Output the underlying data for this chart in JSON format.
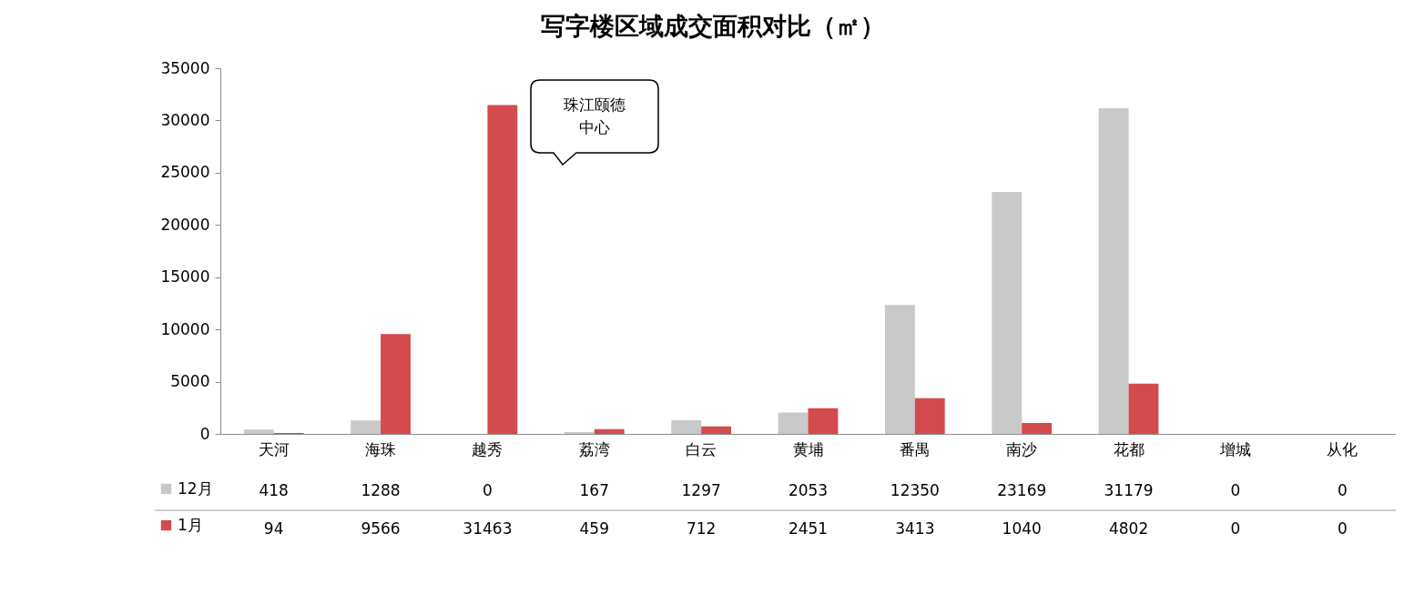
{
  "chart_data": {
    "type": "bar",
    "title": "写字楼区域成交面积对比（㎡）",
    "categories": [
      "天河",
      "海珠",
      "越秀",
      "荔湾",
      "白云",
      "黄埔",
      "番禺",
      "南沙",
      "花都",
      "增城",
      "从化"
    ],
    "series": [
      {
        "name": "12月",
        "color": "#c9c9c9",
        "values": [
          418,
          1288,
          0,
          167,
          1297,
          2053,
          12350,
          23169,
          31179,
          0,
          0
        ]
      },
      {
        "name": "1月",
        "color": "#d34b4c",
        "values": [
          94,
          9566,
          31463,
          459,
          712,
          2451,
          3413,
          1040,
          4802,
          0,
          0
        ]
      }
    ],
    "ylim": [
      0,
      35000
    ],
    "yticks": [
      0,
      5000,
      10000,
      15000,
      20000,
      25000,
      30000,
      35000
    ],
    "grid": false,
    "legend": "bottom left",
    "data_labels": true,
    "annotations": [
      "珠江颐德中心"
    ]
  }
}
